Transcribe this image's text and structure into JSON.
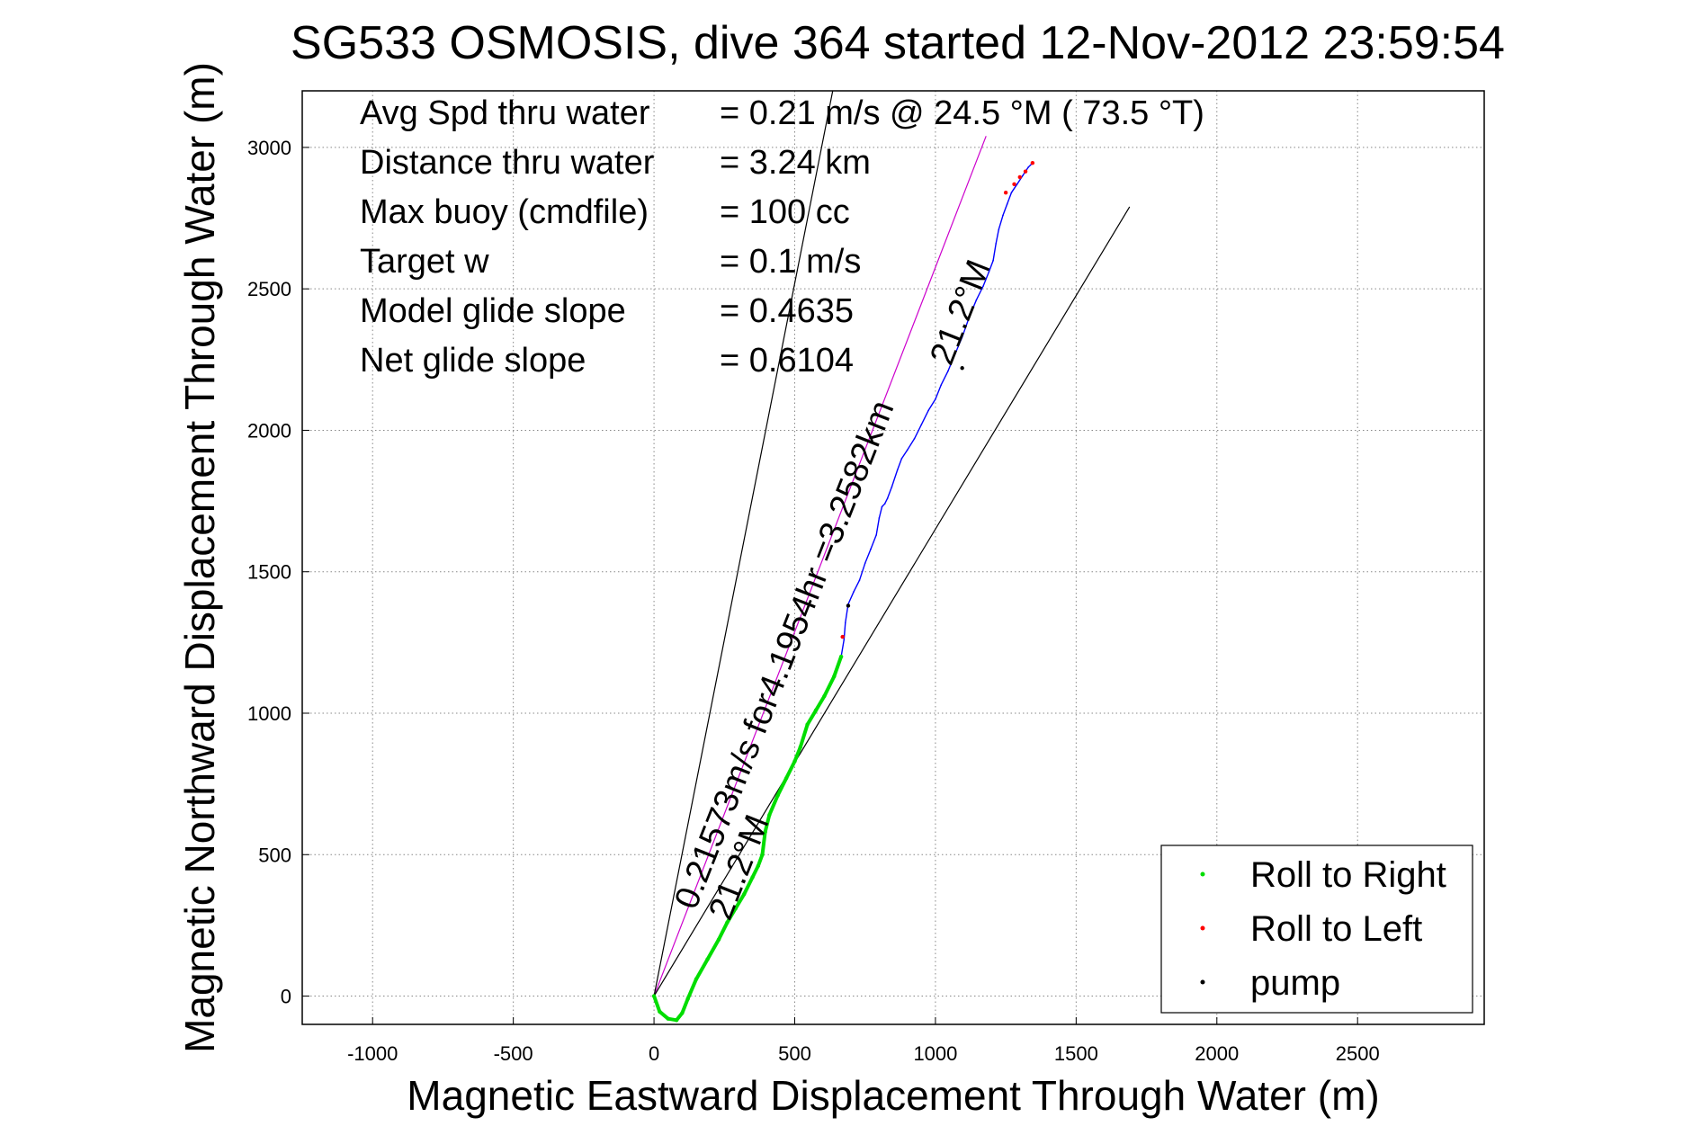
{
  "chart_data": {
    "type": "line",
    "title": "SG533 OSMOSIS, dive 364 started 12-Nov-2012 23:59:54",
    "xlabel": "Magnetic Eastward Displacement Through Water (m)",
    "ylabel": "Magnetic Northward Displacement Through Water (m)",
    "xlim": [
      -1250,
      2950
    ],
    "ylim": [
      -100,
      3200
    ],
    "xticks": [
      -1000,
      -500,
      0,
      500,
      1000,
      1500,
      2000,
      2500
    ],
    "yticks": [
      0,
      500,
      1000,
      1500,
      2000,
      2500,
      3000
    ],
    "grid": true,
    "legend_position": "bottom-right",
    "stats": [
      {
        "label": "Avg Spd thru water",
        "value": "=  0.21 m/s @  24.5 °M ( 73.5 °T)"
      },
      {
        "label": "Distance thru water",
        "value": "=  3.24 km"
      },
      {
        "label": "Max buoy (cmdfile)",
        "value": "= 100 cc"
      },
      {
        "label": "Target w",
        "value": "= 0.1 m/s"
      },
      {
        "label": "Model glide slope",
        "value": "= 0.4635"
      },
      {
        "label": "Net glide slope",
        "value": "= 0.6104"
      }
    ],
    "annotations": {
      "speed_line": "0.21573m/s for4.1954hr =3.2582km",
      "heading_left": "21.2°M",
      "heading_right": "21.2°M"
    },
    "reference_lines": [
      {
        "name": "heading",
        "color": "#cc00cc",
        "x": [
          0,
          1180
        ],
        "y": [
          0,
          3040
        ]
      },
      {
        "name": "bound-left",
        "color": "#000000",
        "x": [
          0,
          635
        ],
        "y": [
          0,
          3200
        ]
      },
      {
        "name": "bound-right",
        "color": "#000000",
        "x": [
          0,
          1690
        ],
        "y": [
          0,
          2790
        ]
      }
    ],
    "series": [
      {
        "name": "Roll to Right",
        "color": "#00dd00",
        "x": [
          0,
          20,
          50,
          80,
          100,
          120,
          150,
          190,
          230,
          260,
          290,
          320,
          350,
          370,
          385,
          395,
          410,
          440,
          470,
          500,
          520,
          545,
          575,
          605,
          640,
          665
        ],
        "y": [
          0,
          -55,
          -80,
          -85,
          -60,
          -10,
          60,
          130,
          200,
          260,
          310,
          360,
          420,
          460,
          500,
          580,
          640,
          710,
          770,
          830,
          880,
          960,
          1010,
          1060,
          1130,
          1200
        ]
      },
      {
        "name": "Roll to Left",
        "color": "#ff0000",
        "x": [
          670,
          1250,
          1280,
          1300,
          1320,
          1345
        ],
        "y": [
          1270,
          2840,
          2870,
          2895,
          2915,
          2945
        ]
      },
      {
        "name": "pump",
        "color": "#000000",
        "x": [
          690,
          1095
        ],
        "y": [
          1380,
          2220
        ]
      },
      {
        "name": "track",
        "color": "#0000ff",
        "x": [
          665,
          675,
          680,
          690,
          710,
          730,
          750,
          770,
          790,
          800,
          810,
          820,
          830,
          845,
          865,
          880,
          900,
          925,
          950,
          975,
          1000,
          1020,
          1045,
          1070,
          1095,
          1120,
          1145,
          1170,
          1190,
          1205,
          1215,
          1225,
          1240,
          1255,
          1270,
          1290,
          1310,
          1330,
          1345
        ],
        "y": [
          1200,
          1260,
          1320,
          1385,
          1430,
          1470,
          1530,
          1580,
          1630,
          1690,
          1730,
          1740,
          1760,
          1800,
          1860,
          1900,
          1930,
          1970,
          2020,
          2070,
          2110,
          2160,
          2210,
          2270,
          2330,
          2400,
          2460,
          2510,
          2560,
          2600,
          2660,
          2710,
          2760,
          2800,
          2840,
          2870,
          2900,
          2930,
          2945
        ]
      }
    ],
    "legend": [
      {
        "label": "Roll to Right",
        "color": "#00dd00"
      },
      {
        "label": "Roll to Left",
        "color": "#ff0000"
      },
      {
        "label": "pump",
        "color": "#000000"
      }
    ]
  }
}
